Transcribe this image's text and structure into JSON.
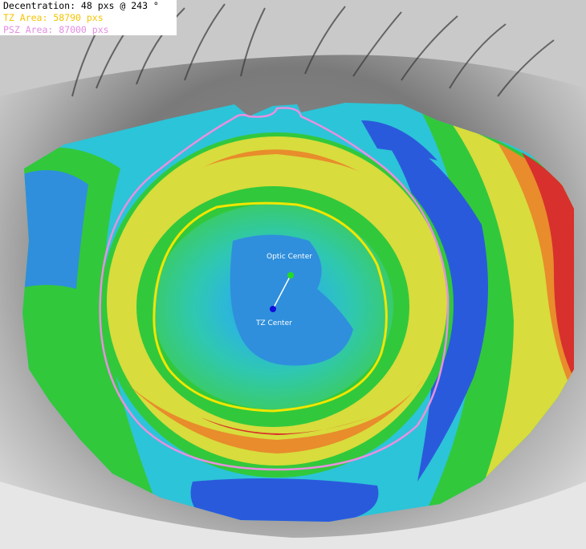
{
  "overlay": {
    "decentration": "Decentration: 48 pxs @ 243  °",
    "tz_area": "TZ Area: 58790 pxs",
    "psz_area": "PSZ Area: 87000 pxs"
  },
  "markers": {
    "optic_center": "Optic Center",
    "tz_center": "TZ Center"
  },
  "colors": {
    "tz_area_text": "#f5c400",
    "psz_area_text": "#e58be5",
    "tz_outline": "#f2e600",
    "psz_outline": "#e890e0",
    "optic_center_dot": "#22dd22",
    "tz_center_dot": "#1010dd",
    "map_blue": "#2a5adc",
    "map_cyan": "#2cc4d8",
    "map_green": "#32c83c",
    "map_yellow": "#d8dc3c",
    "map_orange": "#e88c2c",
    "map_red": "#d8302c"
  }
}
